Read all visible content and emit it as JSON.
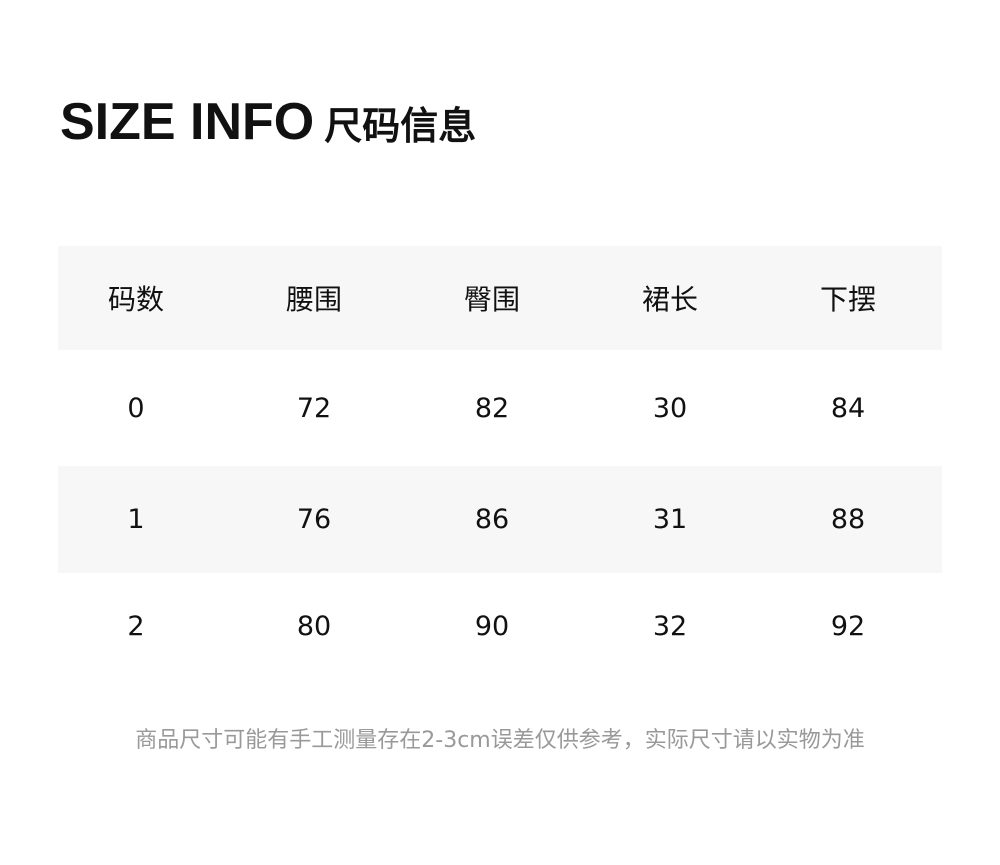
{
  "title": {
    "en": "SIZE INFO",
    "cn": "尺码信息"
  },
  "table": {
    "headers": [
      "码数",
      "腰围",
      "臀围",
      "裙长",
      "下摆"
    ],
    "rows": [
      [
        "0",
        "72",
        "82",
        "30",
        "84"
      ],
      [
        "1",
        "76",
        "86",
        "31",
        "88"
      ],
      [
        "2",
        "80",
        "90",
        "32",
        "92"
      ]
    ]
  },
  "footnote": "商品尺寸可能有手工测量存在2-3cm误差仅供参考，实际尺寸请以实物为准",
  "colors": {
    "stripe": "#f7f7f7",
    "footnote": "#999999"
  }
}
